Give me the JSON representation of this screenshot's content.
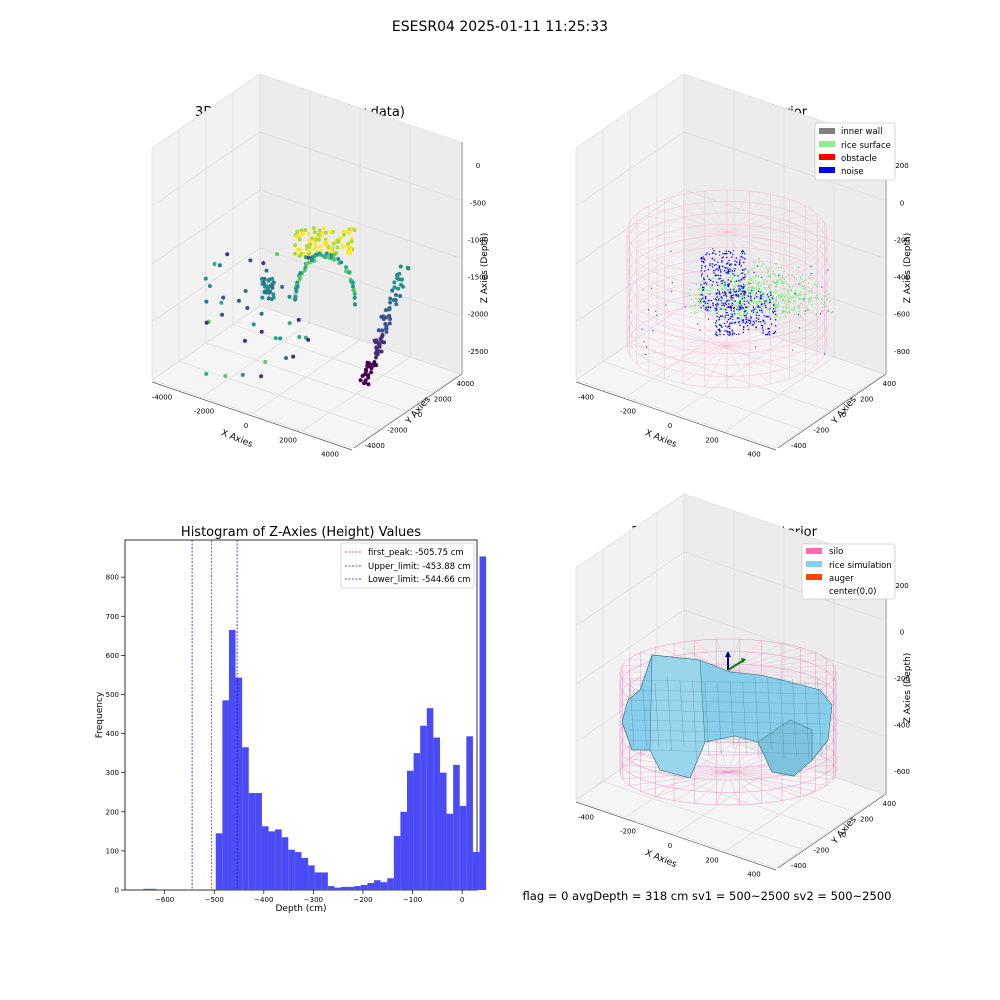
{
  "suptitle": "ESESR04 2025-01-11 11:25:33",
  "footer": "flag = 0     avgDepth = 318 cm  sv1 = 500~2500  sv2 = 500~2500",
  "colors": {
    "hist_bar": "#4b4bf6",
    "first_peak": "#d62728",
    "limit": "#1f1fbf",
    "pane": "#f2f2f2",
    "grid": "#d9d9d9",
    "silo": "#ff69b4",
    "rice_sim": "#87ceeb",
    "auger": "#ff4500",
    "inner_wall": "#808080",
    "rice_surface": "#90ee90",
    "obstacle": "#ff0000",
    "noise": "#0000ff"
  },
  "chart_data": [
    {
      "type": "scatter",
      "title": "3D Plot of Silo Interior(row data)",
      "xlabel": "X Axies",
      "ylabel": "Y Axies",
      "zlabel": "Z Axies (Depth)",
      "xticks": [
        "-4000",
        "-2000",
        "0",
        "2000",
        "4000"
      ],
      "yticks": [
        "-4000",
        "-2000",
        "0",
        "2000",
        "4000"
      ],
      "zticks": [
        "0",
        "-500",
        "-1000",
        "-1500",
        "-2000",
        "-2500"
      ],
      "colormap": "viridis"
    },
    {
      "type": "scatter",
      "title": "3D classify of Silo Interior",
      "xlabel": "X Axies",
      "ylabel": "Y Axies",
      "zlabel": "Z Axies (Depth)",
      "xticks": [
        "-400",
        "-200",
        "0",
        "200",
        "400"
      ],
      "yticks": [
        "-400",
        "-200",
        "0",
        "200",
        "400"
      ],
      "zticks": [
        "200",
        "0",
        "-200",
        "-400",
        "-600",
        "-800"
      ],
      "legend": [
        "inner wall",
        "rice surface",
        "obstacle",
        "noise"
      ],
      "legend_position": "top-right"
    },
    {
      "type": "bar",
      "title": "Histogram of Z-Axies (Height) Values",
      "xlabel": "Depth (cm)",
      "ylabel": "Frequency",
      "xlim": [
        -680,
        30
      ],
      "ylim": [
        0,
        895
      ],
      "xticks": [
        -600,
        -500,
        -400,
        -300,
        -200,
        -100,
        0
      ],
      "yticks": [
        0,
        100,
        200,
        300,
        400,
        500,
        600,
        700,
        800
      ],
      "bin_start": -643.2,
      "bin_width": 13.3,
      "values": [
        3,
        3,
        0,
        0,
        0,
        0,
        0,
        0,
        0,
        0,
        0,
        145,
        485,
        665,
        543,
        365,
        248,
        248,
        163,
        150,
        155,
        135,
        103,
        97,
        82,
        63,
        45,
        45,
        10,
        6,
        8,
        8,
        10,
        13,
        18,
        25,
        20,
        30,
        138,
        200,
        305,
        350,
        420,
        465,
        390,
        300,
        195,
        320,
        215,
        393,
        97,
        853
      ],
      "legend": [
        "first_peak: -505.75 cm",
        "Upper_limit: -453.88 cm",
        "Lower_limit: -544.66 cm"
      ],
      "legend_position": "top-right",
      "vlines": [
        {
          "name": "first_peak",
          "x": -505.75
        },
        {
          "name": "Upper_limit",
          "x": -453.88
        },
        {
          "name": "Lower_limit",
          "x": -544.66
        }
      ]
    },
    {
      "type": "area",
      "title": "3D simulation of Silo Interior",
      "xlabel": "X Axies",
      "ylabel": "Y Axies",
      "zlabel": "Z Axies (Depth)",
      "xticks": [
        "-400",
        "-200",
        "0",
        "200",
        "400"
      ],
      "yticks": [
        "-400",
        "-200",
        "0",
        "200",
        "400"
      ],
      "zticks": [
        "200",
        "0",
        "-200",
        "-400",
        "-600"
      ],
      "legend": [
        "silo",
        "rice simulation",
        "auger",
        "center(0,0)"
      ],
      "legend_position": "top-right"
    }
  ]
}
